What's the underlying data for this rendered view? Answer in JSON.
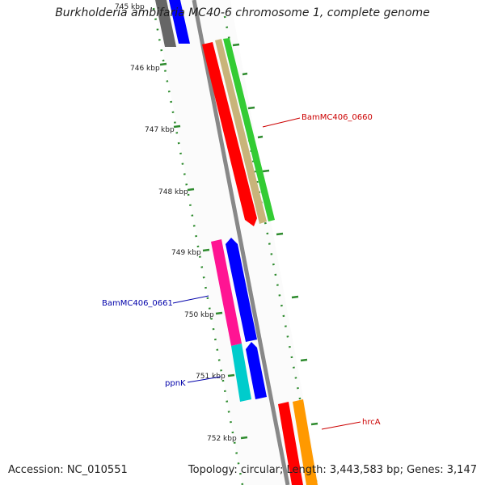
{
  "title": "Burkholderia ambifaria MC40-6 chromosome 1, complete genome",
  "footer": {
    "accession": "Accession: NC_010551",
    "summary": "Topology: circular; Length: 3,443,583 bp; Genes: 3,147"
  },
  "ruler": {
    "top_label": "745 kbp",
    "labels": [
      "746 kbp",
      "747 kbp",
      "748 kbp",
      "749 kbp",
      "750 kbp",
      "751 kbp",
      "752 kbp"
    ]
  },
  "gene_labels": [
    {
      "id": "BamMC406_0660",
      "text": "BamMC406_0660",
      "color": "#cc0000"
    },
    {
      "id": "BamMC406_0661",
      "text": "BamMC406_0661",
      "color": "#0000aa"
    },
    {
      "id": "ppnK",
      "text": "ppnK",
      "color": "#0000aa"
    },
    {
      "id": "hrcA",
      "text": "hrcA",
      "color": "#cc0000"
    }
  ],
  "colors": {
    "backbone": "#888888",
    "ruler_dots": "#2e8b2e",
    "red": "#ff0000",
    "green": "#33cc33",
    "tan": "#c8b47a",
    "blue": "#0000ff",
    "pink": "#ff1493",
    "cyan": "#00cccc",
    "orange": "#ff9900",
    "gray": "#666666"
  }
}
